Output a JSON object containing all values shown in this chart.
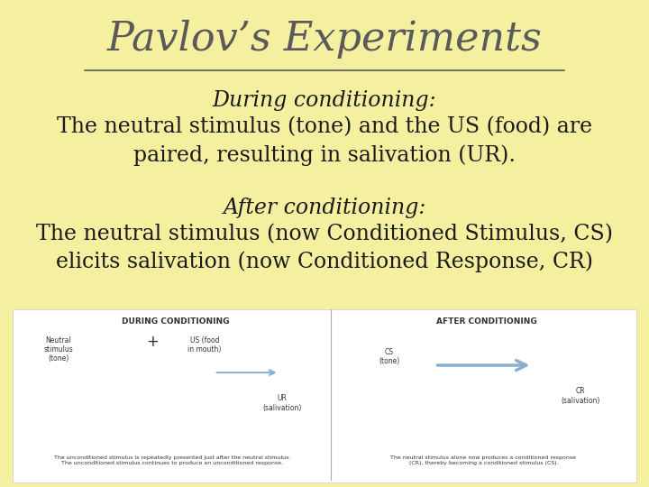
{
  "title": "Pavlov’s Experiments",
  "background_color": "#F5F0A0",
  "title_color": "#5a5a5a",
  "title_fontsize": 32,
  "during_heading": "During conditioning:",
  "during_body": "The neutral stimulus (tone) and the US (food) are\npaired, resulting in salivation (UR).",
  "after_heading": "After conditioning:",
  "after_body": "The neutral stimulus (now Conditioned Stimulus, CS)\nelicits salivation (now Conditioned Response, CR)",
  "text_color": "#1a1a1a",
  "heading_fontsize": 17,
  "body_fontsize": 17,
  "underline_color": "#5a5a5a",
  "image_box_color": "#ffffff",
  "panel_left_label": "DURING CONDITIONING",
  "panel_right_label": "AFTER CONDITIONING",
  "neutral_label": "Neutral\nstimulus\n(tone)",
  "us_label": "US (food\nin mouth)",
  "ur_label": "UR\n(salivation)",
  "cs_label": "CS\n(tone)",
  "cr_label": "CR\n(salivation)",
  "caption_left": "The unconditioned stimulus is repeatedly presented just after the neutral stimulus.\nThe unconditioned stimulus continues to produce an unconditioned response.",
  "caption_right": "The neutral stimulus alone now produces a conditioned response\n(CR), thereby becoming a conditioned stimulus (CS).",
  "arrow_color": "#8ab0d0"
}
